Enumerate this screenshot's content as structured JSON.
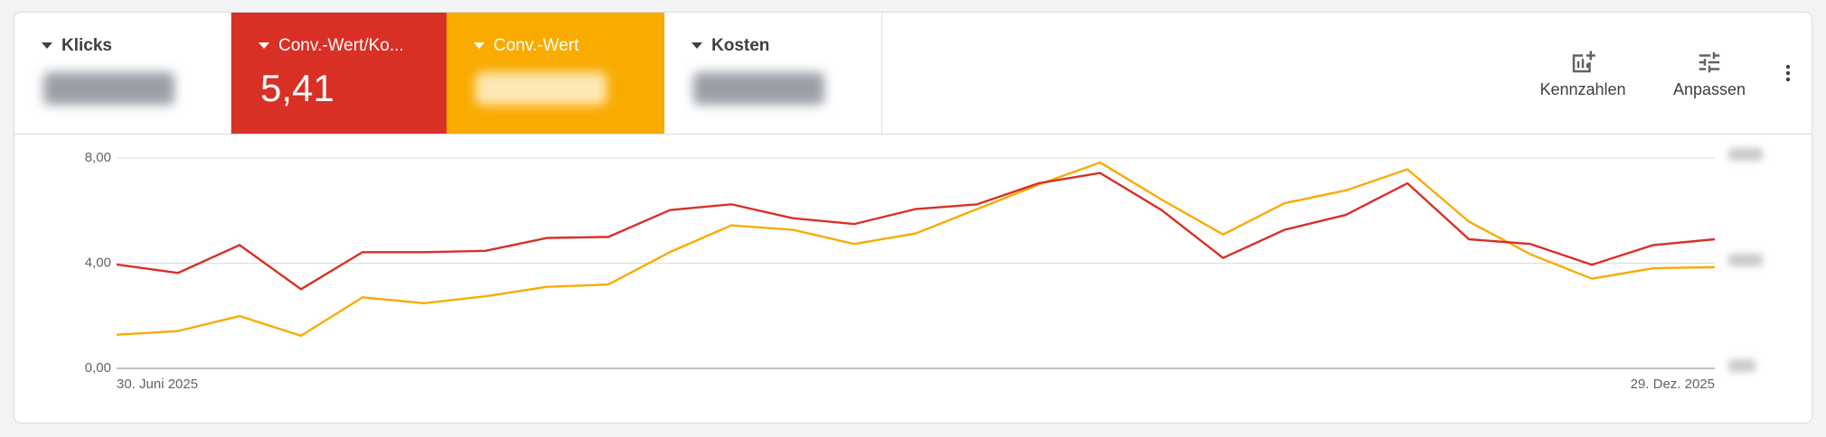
{
  "metrics": [
    {
      "label": "Klicks"
    },
    {
      "label": "Conv.-Wert/Ko...",
      "value": "5,41"
    },
    {
      "label": "Conv.-Wert"
    },
    {
      "label": "Kosten"
    }
  ],
  "toolbar": {
    "metrics_button": "Kennzahlen",
    "customize_button": "Anpassen"
  },
  "chart_data": {
    "type": "line",
    "categories": [
      "30. Juni 2025",
      null,
      null,
      null,
      null,
      null,
      null,
      null,
      null,
      null,
      null,
      null,
      null,
      null,
      null,
      null,
      null,
      null,
      null,
      null,
      null,
      null,
      null,
      null,
      null,
      null,
      "29. Dez. 2025"
    ],
    "series": [
      {
        "name": "Conv.-Wert/Ko...",
        "color": "#d93025",
        "values": [
          3.95,
          3.63,
          4.69,
          3.01,
          4.42,
          4.42,
          4.47,
          4.96,
          5.0,
          6.02,
          6.24,
          5.71,
          5.49,
          6.06,
          6.24,
          7.04,
          7.43,
          6.02,
          4.2,
          5.27,
          5.84,
          7.04,
          4.91,
          4.73,
          3.94,
          4.69,
          4.91
        ]
      },
      {
        "name": "Conv.-Wert",
        "color": "#f9ab00",
        "values": [
          1.28,
          1.42,
          1.99,
          1.24,
          2.7,
          2.48,
          2.74,
          3.1,
          3.19,
          4.42,
          5.44,
          5.27,
          4.73,
          5.13,
          6.06,
          6.99,
          7.83,
          6.42,
          5.09,
          6.28,
          6.77,
          7.57,
          5.58,
          4.34,
          3.41,
          3.81,
          3.85
        ]
      }
    ],
    "ylim": [
      0,
      8
    ],
    "yticks": [
      {
        "value": 0,
        "label": "0,00"
      },
      {
        "value": 4,
        "label": "4,00"
      },
      {
        "value": 8,
        "label": "8,00"
      }
    ],
    "grid": true
  }
}
